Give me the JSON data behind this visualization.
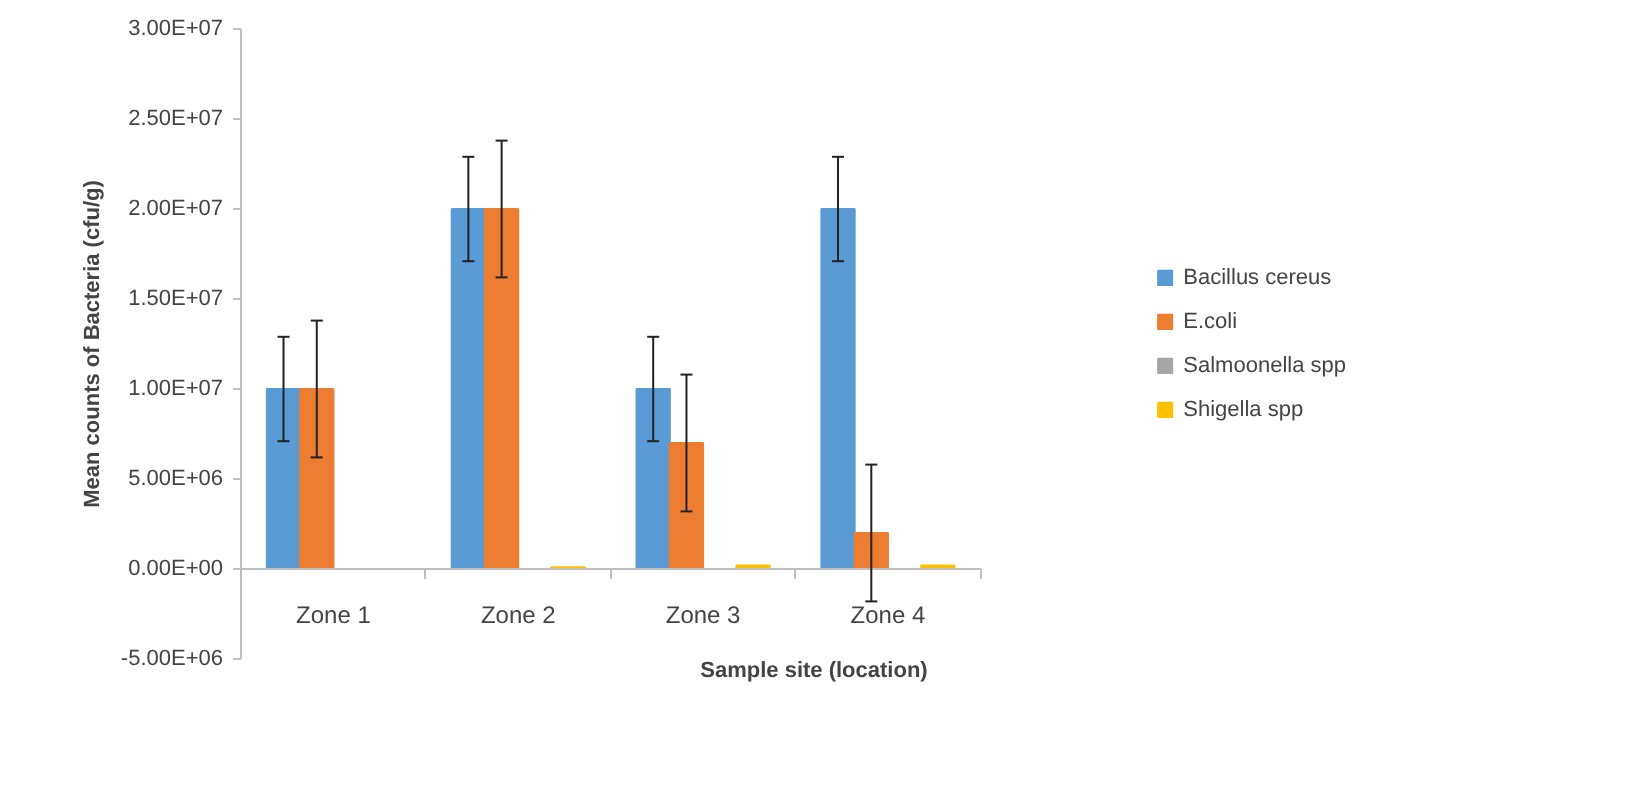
{
  "chart_data": {
    "type": "bar",
    "xlabel": "Sample site (location)",
    "ylabel": "Mean counts of Bacteria (cfu/g)",
    "categories": [
      "Zone 1",
      "Zone 2",
      "Zone 3",
      "Zone 4"
    ],
    "series": [
      {
        "name": "Bacillus cereus",
        "color": "#5b9bd5",
        "values": [
          10000000,
          20000000,
          10000000,
          20000000
        ],
        "errors": [
          2900000,
          2900000,
          2900000,
          2900000
        ]
      },
      {
        "name": "E.coli",
        "color": "#ed7d31",
        "values": [
          10000000,
          20000000,
          7000000,
          2000000
        ],
        "errors": [
          3800000,
          3800000,
          3800000,
          3800000
        ]
      },
      {
        "name": "Salmoonella spp",
        "color": "#a5a5a5",
        "values": [
          0,
          0,
          0,
          0
        ]
      },
      {
        "name": "Shigella spp",
        "color": "#ffc000",
        "values": [
          0,
          100000,
          200000,
          200000
        ]
      }
    ],
    "ylim": [
      -5000000,
      30000000
    ],
    "yticks": [
      {
        "value": -5000000,
        "label": "-5.00E+06"
      },
      {
        "value": 0,
        "label": "0.00E+00"
      },
      {
        "value": 5000000,
        "label": "5.00E+06"
      },
      {
        "value": 10000000,
        "label": "1.00E+07"
      },
      {
        "value": 15000000,
        "label": "1.50E+07"
      },
      {
        "value": 20000000,
        "label": "2.00E+07"
      },
      {
        "value": 25000000,
        "label": "2.50E+07"
      },
      {
        "value": 30000000,
        "label": "3.00E+07"
      }
    ],
    "grid": false,
    "legend": "right"
  }
}
